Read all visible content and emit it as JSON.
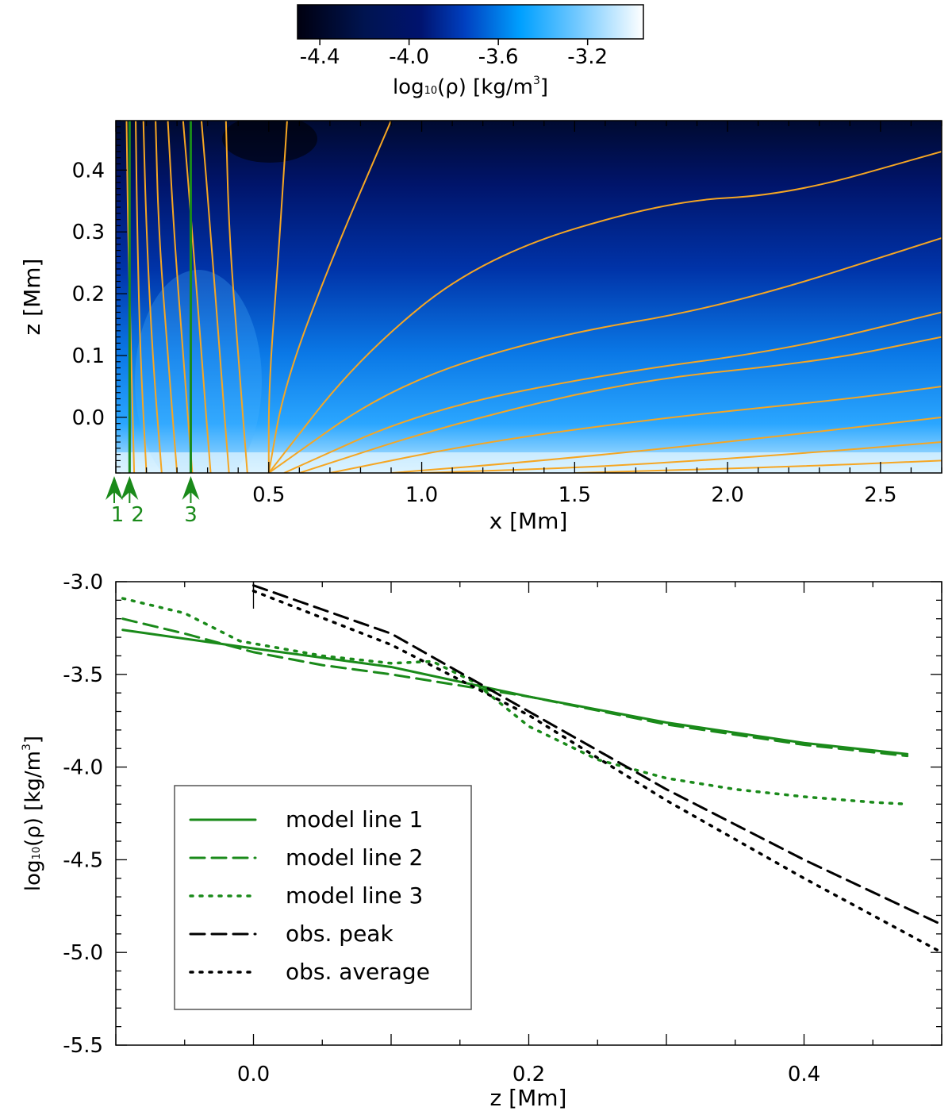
{
  "colors": {
    "green": "#1a8a1a",
    "orange": "#f5a623",
    "black": "#000000"
  },
  "chart_data": [
    {
      "type": "heatmap",
      "title": "",
      "colorbar": {
        "label_prefix": "log",
        "label_sub": "10",
        "label_rho": "(ρ) [kg/m",
        "label_exp": "3",
        "label_end": "]",
        "range": [
          -4.5,
          -2.95
        ],
        "ticks": [
          -4.4,
          -4.0,
          -3.6,
          -3.2
        ],
        "tick_labels": [
          "-4.4",
          "-4.0",
          "-3.6",
          "-3.2"
        ],
        "stops": [
          {
            "value": -4.5,
            "color": "#000010"
          },
          {
            "value": -4.2,
            "color": "#001450"
          },
          {
            "value": -3.95,
            "color": "#00136e"
          },
          {
            "value": -3.75,
            "color": "#0040c0"
          },
          {
            "value": -3.5,
            "color": "#00a0ff"
          },
          {
            "value": -3.25,
            "color": "#70c8ff"
          },
          {
            "value": -2.95,
            "color": "#ffffff"
          }
        ]
      },
      "xlabel": "x [Mm]",
      "ylabel": "z [Mm]",
      "xlim": [
        0.0,
        2.7
      ],
      "ylim": [
        -0.09,
        0.48
      ],
      "xticks": [
        0.5,
        1.0,
        1.5,
        2.0,
        2.5
      ],
      "xtick_labels": [
        "0.5",
        "1.0",
        "1.5",
        "2.0",
        "2.5"
      ],
      "yticks": [
        0.0,
        0.1,
        0.2,
        0.3,
        0.4
      ],
      "ytick_labels": [
        "0.0",
        "0.1",
        "0.2",
        "0.3",
        "0.4"
      ],
      "model_lines": [
        {
          "x": 0.0,
          "label": "1"
        },
        {
          "x": 0.045,
          "label": "2"
        },
        {
          "x": 0.245,
          "label": "3"
        }
      ],
      "field_lines": [
        [
          [
            0.06,
            -0.09
          ],
          [
            0.05,
            0.1
          ],
          [
            0.04,
            0.3
          ],
          [
            0.035,
            0.48
          ]
        ],
        [
          [
            0.1,
            -0.09
          ],
          [
            0.08,
            0.1
          ],
          [
            0.07,
            0.3
          ],
          [
            0.065,
            0.48
          ]
        ],
        [
          [
            0.15,
            -0.09
          ],
          [
            0.12,
            0.1
          ],
          [
            0.1,
            0.3
          ],
          [
            0.09,
            0.48
          ]
        ],
        [
          [
            0.2,
            -0.09
          ],
          [
            0.17,
            0.1
          ],
          [
            0.14,
            0.3
          ],
          [
            0.13,
            0.48
          ]
        ],
        [
          [
            0.25,
            -0.09
          ],
          [
            0.22,
            0.1
          ],
          [
            0.19,
            0.3
          ],
          [
            0.17,
            0.48
          ]
        ],
        [
          [
            0.31,
            -0.09
          ],
          [
            0.28,
            0.1
          ],
          [
            0.25,
            0.3
          ],
          [
            0.22,
            0.48
          ]
        ],
        [
          [
            0.37,
            -0.09
          ],
          [
            0.34,
            0.1
          ],
          [
            0.31,
            0.3
          ],
          [
            0.28,
            0.48
          ]
        ],
        [
          [
            0.43,
            -0.09
          ],
          [
            0.4,
            0.1
          ],
          [
            0.37,
            0.3
          ],
          [
            0.36,
            0.48
          ]
        ],
        [
          [
            0.5,
            -0.09
          ],
          [
            0.5,
            0.05
          ],
          [
            0.53,
            0.25
          ],
          [
            0.56,
            0.48
          ]
        ],
        [
          [
            0.5,
            -0.09
          ],
          [
            0.55,
            0.05
          ],
          [
            0.7,
            0.25
          ],
          [
            0.9,
            0.48
          ]
        ],
        [
          [
            0.5,
            -0.09
          ],
          [
            0.8,
            0.1
          ],
          [
            1.2,
            0.26
          ],
          [
            1.8,
            0.35
          ],
          [
            2.2,
            0.36
          ],
          [
            2.7,
            0.43
          ]
        ],
        [
          [
            0.5,
            -0.09
          ],
          [
            0.9,
            0.05
          ],
          [
            1.4,
            0.13
          ],
          [
            2.0,
            0.18
          ],
          [
            2.7,
            0.29
          ]
        ],
        [
          [
            0.55,
            -0.09
          ],
          [
            1.0,
            0.01
          ],
          [
            1.6,
            0.07
          ],
          [
            2.2,
            0.11
          ],
          [
            2.7,
            0.17
          ]
        ],
        [
          [
            0.6,
            -0.09
          ],
          [
            1.1,
            -0.01
          ],
          [
            1.7,
            0.06
          ],
          [
            2.3,
            0.09
          ],
          [
            2.7,
            0.13
          ]
        ],
        [
          [
            0.7,
            -0.09
          ],
          [
            1.2,
            -0.04
          ],
          [
            1.8,
            0.0
          ],
          [
            2.4,
            0.03
          ],
          [
            2.7,
            0.05
          ]
        ],
        [
          [
            0.9,
            -0.09
          ],
          [
            1.4,
            -0.07
          ],
          [
            2.0,
            -0.04
          ],
          [
            2.7,
            0.0
          ]
        ],
        [
          [
            1.0,
            -0.09
          ],
          [
            1.6,
            -0.08
          ],
          [
            2.2,
            -0.06
          ],
          [
            2.7,
            -0.04
          ]
        ],
        [
          [
            1.5,
            -0.09
          ],
          [
            2.2,
            -0.08
          ],
          [
            2.7,
            -0.07
          ]
        ]
      ]
    },
    {
      "type": "line",
      "title": "",
      "xlabel": "z [Mm]",
      "ylabel_prefix": "log",
      "ylabel_sub": "10",
      "ylabel_rho": "(ρ) [kg/m",
      "ylabel_exp": "3",
      "ylabel_end": "]",
      "xlim": [
        -0.1,
        0.5
      ],
      "ylim": [
        -5.5,
        -3.0
      ],
      "xticks": [
        0.0,
        0.2,
        0.4
      ],
      "xtick_labels": [
        "0.0",
        "0.2",
        "0.4"
      ],
      "yticks": [
        -5.5,
        -5.0,
        -4.5,
        -4.0,
        -3.5,
        -3.0
      ],
      "ytick_labels": [
        "-5.5",
        "-5.0",
        "-4.5",
        "-4.0",
        "-3.5",
        "-3.0"
      ],
      "series": [
        {
          "name": "model line 1",
          "style": "solid",
          "color": "#1a8a1a",
          "x": [
            -0.095,
            0.0,
            0.1,
            0.2,
            0.3,
            0.4,
            0.475
          ],
          "y": [
            -3.26,
            -3.36,
            -3.46,
            -3.62,
            -3.76,
            -3.87,
            -3.93
          ]
        },
        {
          "name": "model line 2",
          "style": "dashed",
          "color": "#1a8a1a",
          "x": [
            -0.095,
            -0.05,
            0.0,
            0.05,
            0.1,
            0.15,
            0.2,
            0.3,
            0.4,
            0.475
          ],
          "y": [
            -3.2,
            -3.28,
            -3.38,
            -3.45,
            -3.5,
            -3.56,
            -3.62,
            -3.77,
            -3.88,
            -3.94
          ]
        },
        {
          "name": "model line 3",
          "style": "dotted",
          "color": "#1a8a1a",
          "x": [
            -0.095,
            -0.05,
            -0.01,
            0.05,
            0.1,
            0.13,
            0.16,
            0.2,
            0.25,
            0.3,
            0.35,
            0.4,
            0.45,
            0.475
          ],
          "y": [
            -3.09,
            -3.17,
            -3.32,
            -3.4,
            -3.44,
            -3.43,
            -3.54,
            -3.78,
            -3.96,
            -4.06,
            -4.12,
            -4.16,
            -4.19,
            -4.2
          ]
        },
        {
          "name": "obs. peak",
          "style": "dashed",
          "color": "#000000",
          "x": [
            0.0,
            0.1,
            0.2,
            0.3,
            0.4,
            0.5
          ],
          "y": [
            -3.02,
            -3.28,
            -3.7,
            -4.12,
            -4.5,
            -4.85
          ]
        },
        {
          "name": "obs. average",
          "style": "dotted",
          "color": "#000000",
          "x": [
            0.0,
            0.1,
            0.2,
            0.3,
            0.4,
            0.5
          ],
          "y": [
            -3.05,
            -3.34,
            -3.72,
            -4.18,
            -4.6,
            -5.0
          ]
        }
      ],
      "legend_position": "bottom-left"
    }
  ]
}
